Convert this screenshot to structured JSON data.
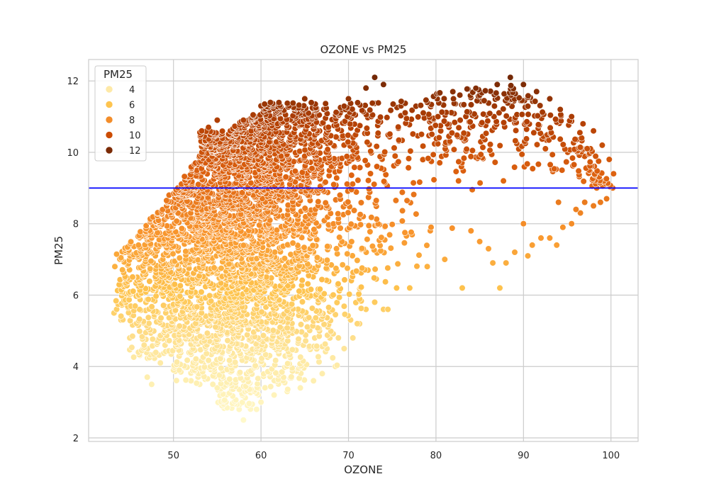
{
  "chart_data": {
    "type": "scatter",
    "title": "OZONE vs PM25",
    "xlabel": "OZONE",
    "ylabel": "PM25",
    "xlim": [
      40.3,
      103.1
    ],
    "ylim": [
      1.9,
      12.6
    ],
    "xticks": [
      50,
      60,
      70,
      80,
      90,
      100
    ],
    "yticks": [
      2,
      4,
      6,
      8,
      10,
      12
    ],
    "grid": true,
    "hue": "PM25",
    "palette": "YlOrBr",
    "hue_range": [
      2.4,
      12.2
    ],
    "legend": {
      "title": "PM25",
      "placement": "upper-left",
      "entries": [
        {
          "label": "4",
          "color": "#fee9a7"
        },
        {
          "label": "6",
          "color": "#fec44f"
        },
        {
          "label": "8",
          "color": "#f38d2a"
        },
        {
          "label": "10",
          "color": "#cc4c02"
        },
        {
          "label": "12",
          "color": "#7a2a05"
        }
      ]
    },
    "reference_line": {
      "orientation": "horizontal",
      "y": 9.0,
      "color": "#0000ff"
    },
    "outline_points": [
      [
        58.0,
        2.5
      ],
      [
        57.5,
        2.8
      ],
      [
        59.5,
        2.8
      ],
      [
        60.0,
        3.0
      ],
      [
        61.5,
        3.2
      ],
      [
        63.0,
        3.3
      ],
      [
        64.5,
        3.4
      ],
      [
        53.0,
        3.5
      ],
      [
        55.0,
        3.4
      ],
      [
        47.5,
        3.5
      ],
      [
        47.0,
        3.7
      ],
      [
        66.0,
        3.6
      ],
      [
        67.0,
        3.8
      ],
      [
        68.5,
        4.0
      ],
      [
        69.5,
        4.5
      ],
      [
        70.5,
        4.8
      ],
      [
        71.0,
        5.2
      ],
      [
        72.0,
        5.6
      ],
      [
        73.0,
        5.8
      ],
      [
        74.0,
        5.6
      ],
      [
        75.5,
        6.2
      ],
      [
        77.0,
        6.2
      ],
      [
        79.0,
        6.8
      ],
      [
        81.0,
        7.0
      ],
      [
        83.0,
        6.2
      ],
      [
        85.0,
        7.5
      ],
      [
        86.0,
        7.3
      ],
      [
        87.3,
        6.2
      ],
      [
        86.5,
        6.9
      ],
      [
        88.0,
        6.9
      ],
      [
        89.0,
        7.2
      ],
      [
        90.5,
        7.1
      ],
      [
        91.0,
        7.4
      ],
      [
        92.0,
        7.6
      ],
      [
        93.0,
        7.6
      ],
      [
        93.8,
        7.4
      ],
      [
        94.5,
        7.9
      ],
      [
        95.5,
        8.0
      ],
      [
        96.5,
        8.3
      ],
      [
        97.0,
        8.6
      ],
      [
        98.0,
        8.5
      ],
      [
        98.8,
        8.6
      ],
      [
        99.5,
        8.7
      ],
      [
        100.2,
        9.0
      ],
      [
        100.3,
        9.4
      ],
      [
        99.8,
        9.8
      ],
      [
        99.0,
        10.2
      ],
      [
        98.0,
        10.6
      ],
      [
        96.8,
        10.8
      ],
      [
        95.5,
        11.0
      ],
      [
        94.2,
        11.2
      ],
      [
        93.0,
        11.5
      ],
      [
        91.5,
        11.7
      ],
      [
        90.0,
        11.9
      ],
      [
        88.5,
        12.1
      ],
      [
        87.0,
        11.9
      ],
      [
        85.0,
        11.6
      ],
      [
        82.0,
        11.5
      ],
      [
        79.0,
        11.4
      ],
      [
        76.0,
        11.3
      ],
      [
        74.0,
        11.9
      ],
      [
        73.0,
        12.1
      ],
      [
        72.0,
        11.8
      ],
      [
        70.0,
        11.5
      ],
      [
        65.0,
        11.5
      ],
      [
        60.0,
        11.3
      ],
      [
        58.0,
        10.9
      ],
      [
        56.5,
        10.6
      ],
      [
        55.0,
        10.9
      ],
      [
        54.0,
        10.7
      ],
      [
        53.0,
        9.9
      ],
      [
        51.5,
        9.3
      ],
      [
        50.5,
        9.0
      ],
      [
        49.5,
        8.8
      ],
      [
        48.5,
        8.3
      ],
      [
        47.5,
        7.6
      ],
      [
        46.0,
        7.4
      ],
      [
        44.5,
        7.2
      ],
      [
        43.3,
        6.8
      ],
      [
        44.0,
        6.1
      ],
      [
        43.5,
        5.6
      ],
      [
        43.2,
        5.5
      ],
      [
        44.0,
        5.3
      ],
      [
        45.0,
        4.8
      ],
      [
        46.0,
        4.4
      ],
      [
        48.5,
        4.1
      ],
      [
        50.0,
        3.9
      ],
      [
        52.0,
        3.6
      ],
      [
        54.5,
        3.5
      ],
      [
        56.0,
        3.0
      ],
      [
        62.0,
        8.2
      ],
      [
        74.5,
        5.6
      ],
      [
        84.0,
        7.8
      ],
      [
        90.0,
        8.0
      ],
      [
        94.0,
        8.6
      ],
      [
        96.0,
        8.4
      ],
      [
        97.5,
        9.5
      ]
    ]
  }
}
